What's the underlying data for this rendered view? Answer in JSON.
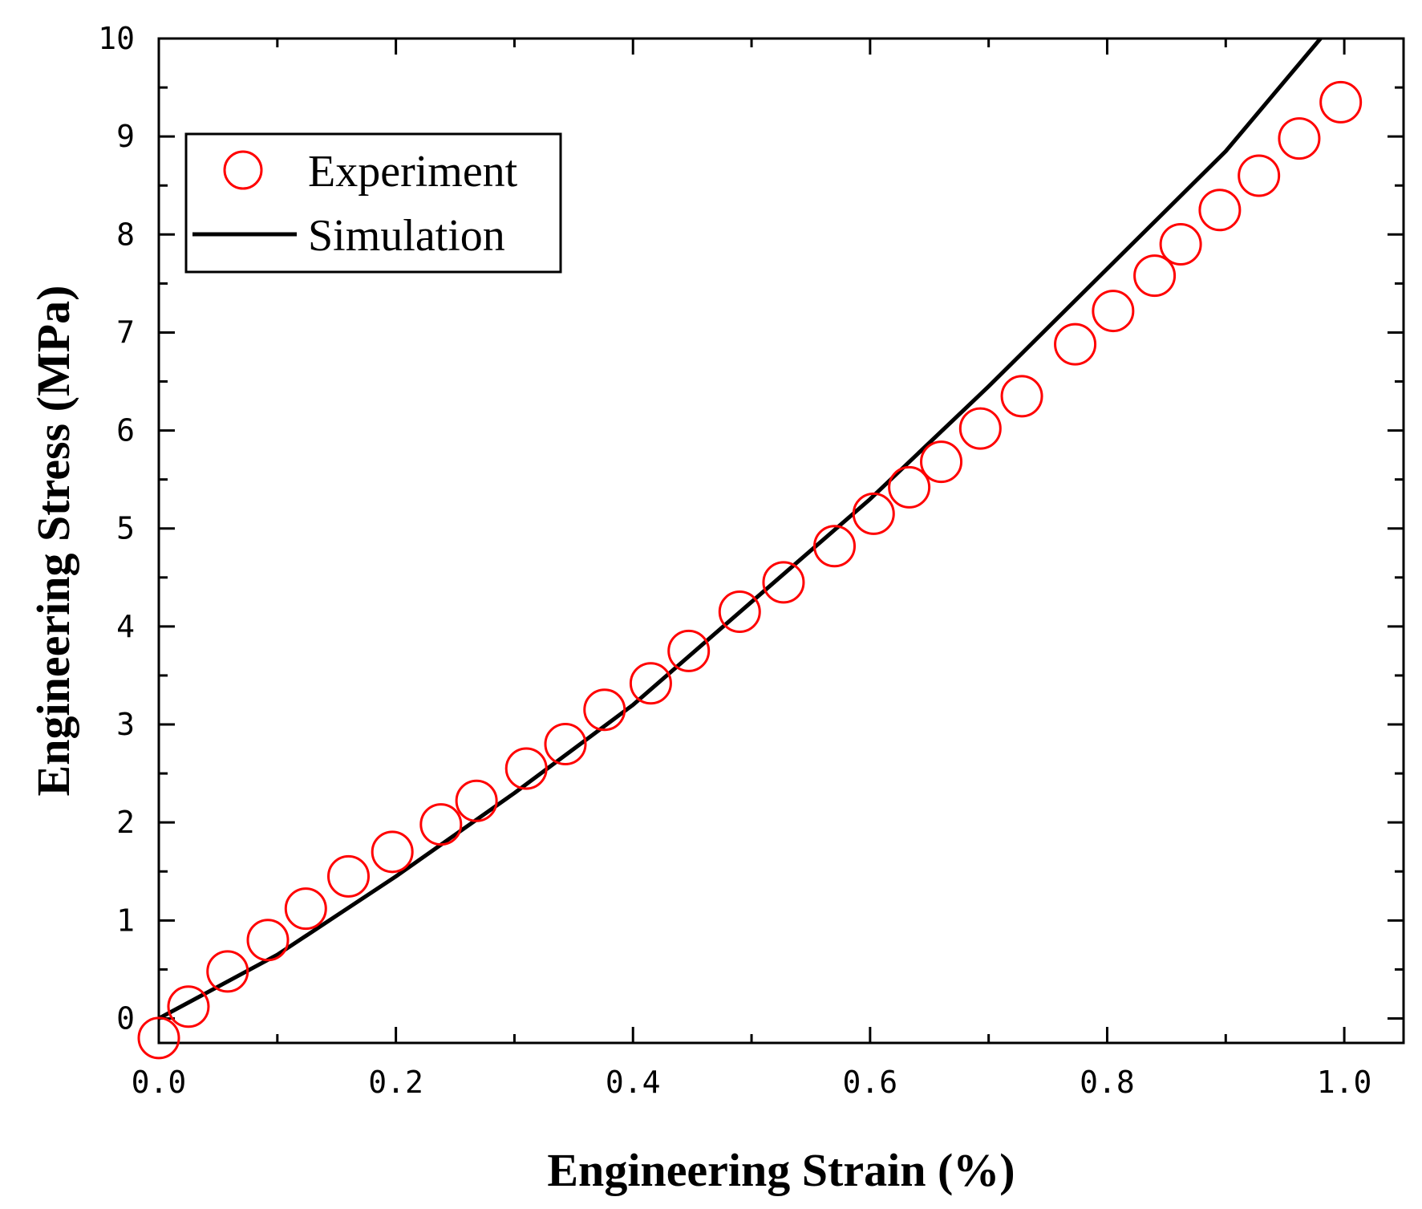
{
  "chart_data": {
    "type": "line",
    "xlabel": "Engineering Strain (%)",
    "ylabel": "Engineering Stress (MPa)",
    "xlim": [
      0.0,
      1.05
    ],
    "ylim": [
      -0.25,
      10.0
    ],
    "x_ticks": [
      "0.0",
      "0.2",
      "0.4",
      "0.6",
      "0.8",
      "1.0"
    ],
    "y_ticks": [
      "0",
      "1",
      "2",
      "3",
      "4",
      "5",
      "6",
      "7",
      "8",
      "9",
      "10"
    ],
    "grid": false,
    "legend_position": "top-left",
    "series": [
      {
        "name": "Experiment",
        "style": "open-circle",
        "color": "#ff0000",
        "x": [
          0.0,
          0.025,
          0.058,
          0.092,
          0.124,
          0.16,
          0.197,
          0.238,
          0.268,
          0.31,
          0.343,
          0.376,
          0.415,
          0.447,
          0.49,
          0.527,
          0.57,
          0.603,
          0.633,
          0.66,
          0.693,
          0.728,
          0.773,
          0.805,
          0.84,
          0.862,
          0.895,
          0.928,
          0.962,
          0.997
        ],
        "y": [
          -0.2,
          0.12,
          0.48,
          0.8,
          1.12,
          1.45,
          1.7,
          1.98,
          2.22,
          2.55,
          2.8,
          3.15,
          3.42,
          3.75,
          4.15,
          4.45,
          4.82,
          5.15,
          5.42,
          5.68,
          6.02,
          6.35,
          6.88,
          7.22,
          7.58,
          7.9,
          8.25,
          8.6,
          8.98,
          9.35
        ]
      },
      {
        "name": "Simulation",
        "style": "line",
        "color": "#000000",
        "x": [
          0.0,
          0.1,
          0.2,
          0.3,
          0.4,
          0.5,
          0.6,
          0.7,
          0.8,
          0.9,
          0.98
        ],
        "y": [
          0.0,
          0.65,
          1.45,
          2.3,
          3.2,
          4.25,
          5.3,
          6.45,
          7.65,
          8.85,
          10.0
        ]
      }
    ]
  }
}
